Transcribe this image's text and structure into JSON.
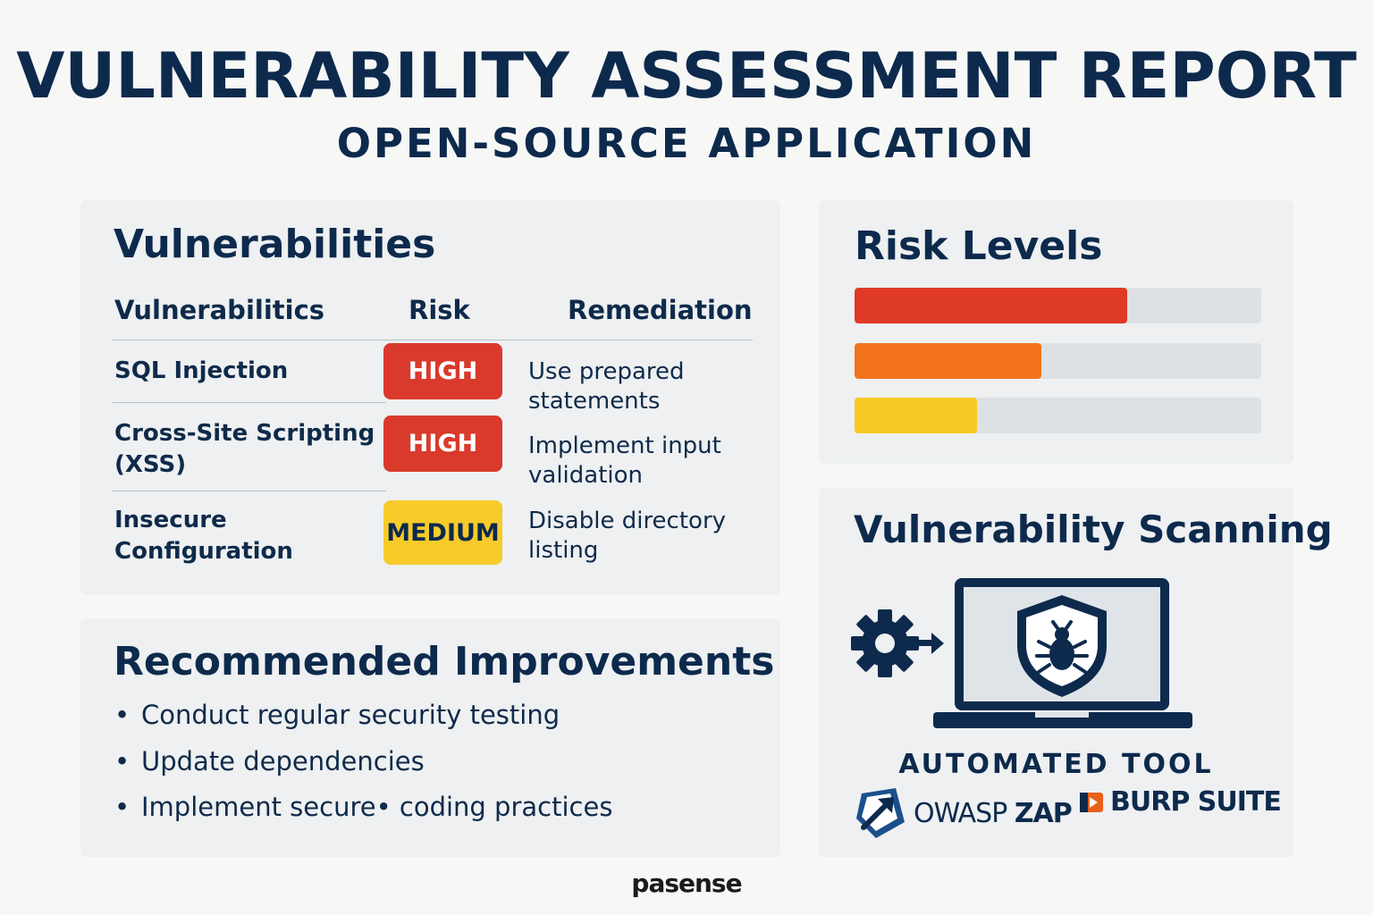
{
  "header": {
    "title": "VULNERABILITY ASSESSMENT REPORT",
    "subtitle": "OPEN-SOURCE APPLICATION"
  },
  "vulnerabilities": {
    "heading": "Vulnerabilities",
    "columns": [
      "Vulnerabilitics",
      "Risk",
      "Remediation"
    ],
    "rows": [
      {
        "name": [
          "SQL Injection"
        ],
        "risk": "HIGH",
        "risk_color": "#d93a2b",
        "risk_text_color": "#ffffff",
        "remediation": [
          "Use prepared",
          "statements"
        ]
      },
      {
        "name": [
          "Cross-Site Scripting",
          "(XSS)"
        ],
        "risk": "HIGH",
        "risk_color": "#d93a2b",
        "risk_text_color": "#ffffff",
        "remediation": [
          "Implement input",
          "validation"
        ]
      },
      {
        "name": [
          "Insecure",
          "Configuration"
        ],
        "risk": "MEDIUM",
        "risk_color": "#f7cb2a",
        "risk_text_color": "#0d2a4d",
        "remediation": [
          "Disable directory",
          "listing"
        ]
      }
    ]
  },
  "improvements": {
    "heading": "Recommended Improvements",
    "items": [
      "Conduct regular security testing",
      "Update dependencies",
      "Implement secure• coding practices"
    ]
  },
  "risk_levels": {
    "heading": "Risk Levels",
    "bars": [
      {
        "level": 0.67,
        "color": "#df3a26"
      },
      {
        "level": 0.46,
        "color": "#f2731c"
      },
      {
        "level": 0.3,
        "color": "#f7c925"
      }
    ]
  },
  "scanning": {
    "heading": "Vulnerability Scanning",
    "label": "AUTOMATED TOOL",
    "tools": [
      {
        "prefix": "OWASP ",
        "bold": "ZAP",
        "icon": "owasp-zap-logo-icon"
      },
      {
        "prefix": "",
        "bold": "BURP SUITE",
        "icon": "burp-suite-logo-icon"
      }
    ],
    "icons": [
      "gear-icon",
      "arrow-right-icon",
      "laptop-icon",
      "shield-bug-icon"
    ]
  },
  "footer": {
    "brand": "pasense"
  },
  "colors": {
    "navy": "#0d2a4d",
    "high": "#d93a2b",
    "medium": "#f7cb2a",
    "card_bg": "#eef0f1"
  }
}
